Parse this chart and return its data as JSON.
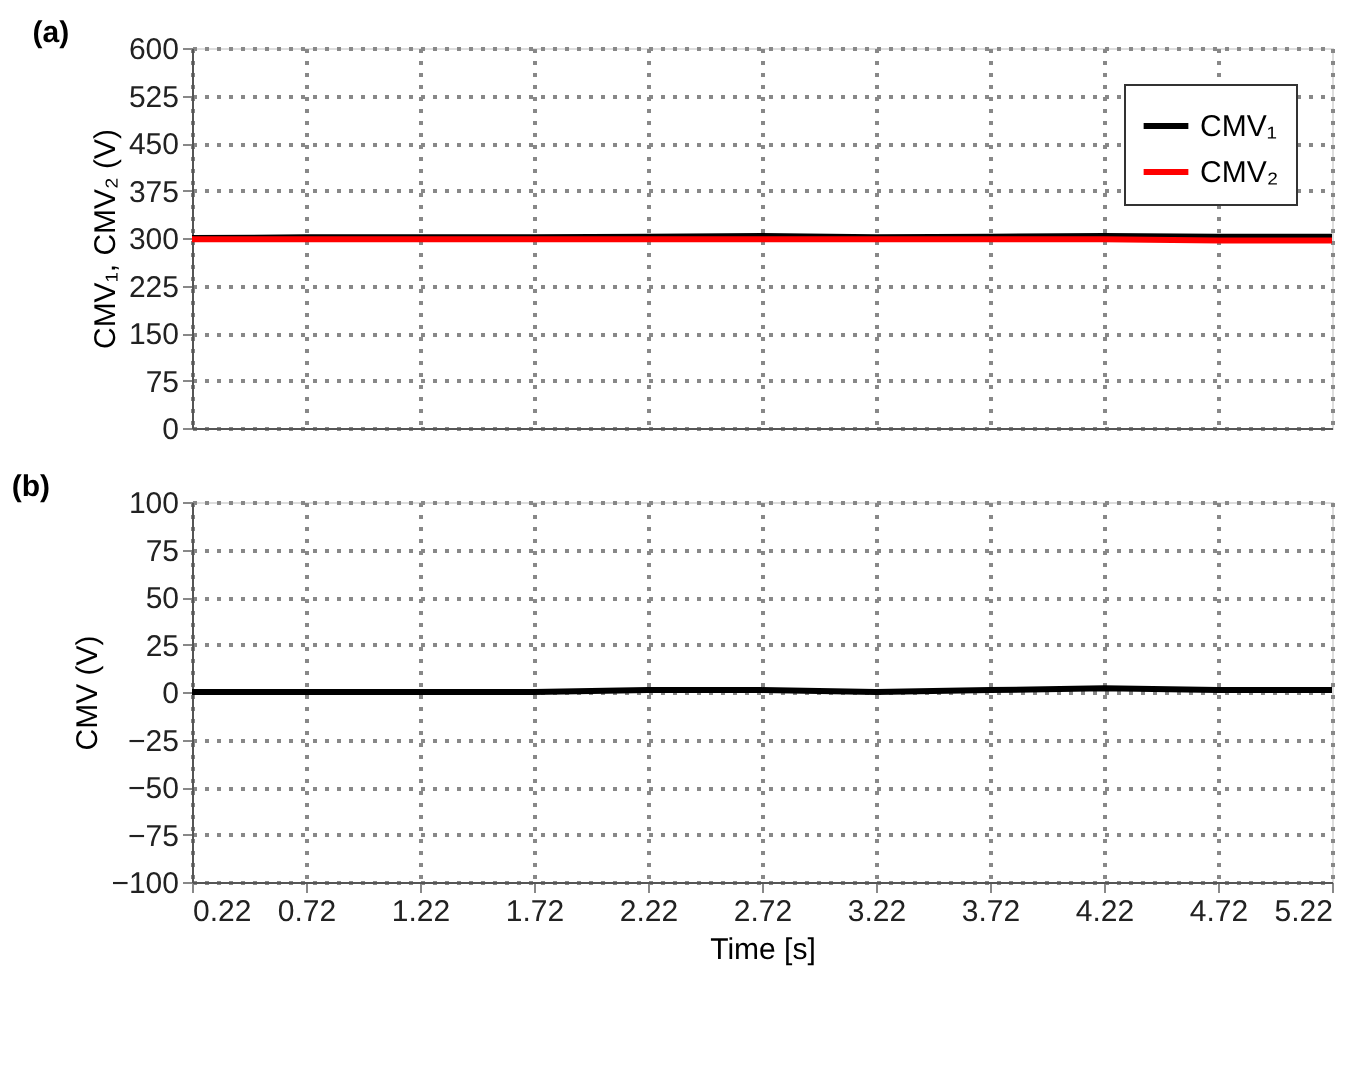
{
  "chart_data": [
    {
      "type": "line",
      "title": "(a)",
      "ylabel": "CMV₁, CMV₂ (V)",
      "x": [
        0.22,
        0.72,
        1.22,
        1.72,
        2.22,
        2.72,
        3.22,
        3.72,
        4.22,
        4.72,
        5.22
      ],
      "series": [
        {
          "name": "CMV₁",
          "color": "#000000",
          "values": [
            300,
            301,
            301,
            301,
            302,
            303,
            301,
            302,
            303,
            302,
            302
          ]
        },
        {
          "name": "CMV₂",
          "color": "#ff0000",
          "values": [
            298,
            298,
            298,
            298,
            298,
            298,
            298,
            298,
            298,
            296,
            296
          ]
        }
      ],
      "xlim": [
        0.22,
        5.22
      ],
      "xticks": [
        0.22,
        0.72,
        1.22,
        1.72,
        2.22,
        2.72,
        3.22,
        3.72,
        4.22,
        4.72,
        5.22
      ],
      "ylim": [
        0,
        600
      ],
      "yticks": [
        0,
        75,
        150,
        225,
        300,
        375,
        450,
        525,
        600
      ],
      "grid": true,
      "legend": "top right",
      "tick_labels": "y",
      "line_style": "solid"
    },
    {
      "type": "line",
      "title": "(b)",
      "xlabel": "Time [s]",
      "ylabel": "CMV (V)",
      "x": [
        0.22,
        0.72,
        1.22,
        1.72,
        2.22,
        2.72,
        3.22,
        3.72,
        4.22,
        4.72,
        5.22
      ],
      "series": [
        {
          "color": "#000000",
          "values": [
            0,
            0,
            0,
            0,
            1,
            1,
            0,
            1,
            2,
            1,
            1
          ]
        }
      ],
      "xlim": [
        0.22,
        5.22
      ],
      "xticks": [
        0.22,
        0.72,
        1.22,
        1.72,
        2.22,
        2.72,
        3.22,
        3.72,
        4.22,
        4.72,
        5.22
      ],
      "ylim": [
        -100,
        100
      ],
      "yticks": [
        -100,
        -75,
        -50,
        -25,
        0,
        25,
        50,
        75,
        100
      ],
      "grid": true,
      "line_style": "solid"
    }
  ]
}
